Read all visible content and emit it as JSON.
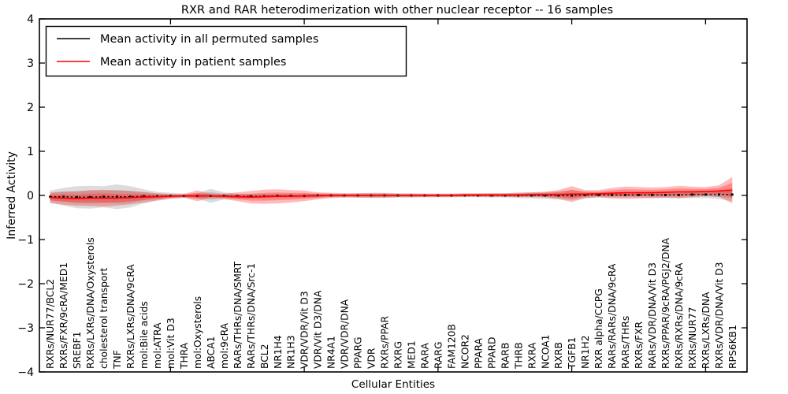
{
  "chart": {
    "title": "RXR and RAR heterodimerization with other nuclear receptor -- 16 samples",
    "xlabel": "Cellular Entities",
    "ylabel": "Inferred Activity",
    "legend_items": [
      {
        "label": "Mean activity in all permuted samples",
        "color": "#000000"
      },
      {
        "label": "Mean activity in patient samples",
        "color": "#ff0000"
      }
    ],
    "y_tick_labels": [
      "4",
      "3",
      "2",
      "1",
      "0",
      "−1",
      "−2",
      "−3",
      "−4"
    ],
    "colors": {
      "permuted_line": "#000000",
      "patient_line": "#ff0000",
      "permuted_band": "rgba(128,128,128,0.28)",
      "patient_band": "rgba(255,25,25,0.30)",
      "axis": "#000000",
      "background": "#ffffff"
    }
  },
  "chart_data": {
    "type": "line",
    "title": "RXR and RAR heterodimerization with other nuclear receptor -- 16 samples",
    "xlabel": "Cellular Entities",
    "ylabel": "Inferred Activity",
    "ylim": [
      -4,
      4
    ],
    "y_ticks": [
      4,
      3,
      2,
      1,
      0,
      -1,
      -2,
      -3,
      -4
    ],
    "x_tick_positions": [
      10,
      20,
      30,
      40,
      50
    ],
    "grid": false,
    "legend_position": "upper left",
    "categories": [
      "RXRs/NUR77/BCL2",
      "RXRs/FXR/9cRA/MED1",
      "SREBF1",
      "RXRs/LXRs/DNA/Oxysterols",
      "cholesterol transport",
      "TNF",
      "RXRs/LXRs/DNA/9cRA",
      "mol:Bile acids",
      "mol:ATRA",
      "mol:Vit D3",
      "THRA",
      "mol:Oxysterols",
      "ABCA1",
      "mol:9cRA",
      "RARs/THRs/DNA/SMRT",
      "RARs/THRs/DNA/Src-1",
      "BCL2",
      "NR1H4",
      "NR1H3",
      "VDR/VDR/Vit D3",
      "VDR/Vit D3/DNA",
      "NR4A1",
      "VDR/VDR/DNA",
      "PPARG",
      "VDR",
      "RXRs/PPAR",
      "RXRG",
      "MED1",
      "RARA",
      "RARG",
      "FAM120B",
      "NCOR2",
      "PPARA",
      "PPARD",
      "RARB",
      "THRB",
      "RXRA",
      "NCOA1",
      "RXRB",
      "TGFB1",
      "NR1H2",
      "RXR alpha/CCPG",
      "RARs/RARs/DNA/9cRA",
      "RARs/THRs",
      "RXRs/FXR",
      "RARs/VDR/DNA/Vit D3",
      "RXRs/PPAR/9cRA/PGJ2/DNA",
      "RXRs/RXRs/DNA/9cRA",
      "RXRs/NUR77",
      "RXRs/LXRs/DNA",
      "RXRs/VDR/DNA/Vit D3",
      "RPS6KB1"
    ],
    "series": [
      {
        "name": "Mean activity in all permuted samples",
        "color": "#000000",
        "line_style": "dashed_with_square_markers",
        "values": [
          -0.03,
          -0.03,
          -0.04,
          -0.04,
          -0.03,
          -0.03,
          -0.03,
          -0.02,
          -0.02,
          -0.01,
          -0.01,
          -0.01,
          -0.01,
          -0.01,
          -0.02,
          -0.02,
          -0.02,
          -0.01,
          -0.01,
          -0.01,
          0,
          0,
          0,
          0,
          0,
          0,
          0,
          0,
          0,
          0,
          0,
          0,
          0,
          0,
          0,
          0,
          0,
          0,
          0,
          0,
          0.01,
          0.01,
          0.01,
          0.01,
          0.01,
          0.01,
          0.01,
          0.01,
          0.02,
          0.02,
          0.02,
          0.02
        ],
        "band_halfwidth": [
          0.14,
          0.2,
          0.25,
          0.26,
          0.24,
          0.28,
          0.24,
          0.16,
          0.1,
          0.07,
          0.05,
          0.06,
          0.16,
          0.08,
          0.06,
          0.05,
          0.05,
          0.05,
          0.05,
          0.05,
          0.05,
          0.04,
          0.04,
          0.05,
          0.06,
          0.06,
          0.05,
          0.05,
          0.04,
          0.04,
          0.04,
          0.04,
          0.04,
          0.05,
          0.05,
          0.06,
          0.07,
          0.08,
          0.09,
          0.11,
          0.08,
          0.06,
          0.06,
          0.06,
          0.06,
          0.07,
          0.07,
          0.08,
          0.08,
          0.08,
          0.1,
          0.15
        ],
        "band_color": "rgba(128,128,128,0.28)"
      },
      {
        "name": "Mean activity in patient samples",
        "color": "#ff0000",
        "line_style": "solid",
        "values": [
          -0.05,
          -0.06,
          -0.07,
          -0.06,
          -0.06,
          -0.06,
          -0.05,
          -0.04,
          -0.03,
          -0.02,
          -0.01,
          -0.01,
          -0.01,
          -0.02,
          -0.03,
          -0.04,
          -0.03,
          -0.02,
          -0.02,
          -0.01,
          -0.01,
          0,
          0,
          0,
          0,
          0,
          0,
          0,
          0,
          0,
          0,
          0.01,
          0.01,
          0.01,
          0.01,
          0.01,
          0.02,
          0.02,
          0.02,
          0.03,
          0.03,
          0.04,
          0.05,
          0.06,
          0.06,
          0.06,
          0.07,
          0.08,
          0.08,
          0.09,
          0.1,
          0.12
        ],
        "band_halfwidth": [
          0.12,
          0.15,
          0.16,
          0.18,
          0.19,
          0.17,
          0.15,
          0.12,
          0.08,
          0.05,
          0.04,
          0.12,
          0.05,
          0.06,
          0.1,
          0.14,
          0.16,
          0.16,
          0.14,
          0.12,
          0.08,
          0.06,
          0.05,
          0.05,
          0.05,
          0.05,
          0.04,
          0.04,
          0.04,
          0.04,
          0.04,
          0.04,
          0.04,
          0.04,
          0.04,
          0.05,
          0.05,
          0.06,
          0.1,
          0.18,
          0.09,
          0.08,
          0.12,
          0.14,
          0.13,
          0.12,
          0.12,
          0.14,
          0.12,
          0.1,
          0.13,
          0.3
        ],
        "band_color": "rgba(255,25,25,0.30)"
      }
    ]
  }
}
